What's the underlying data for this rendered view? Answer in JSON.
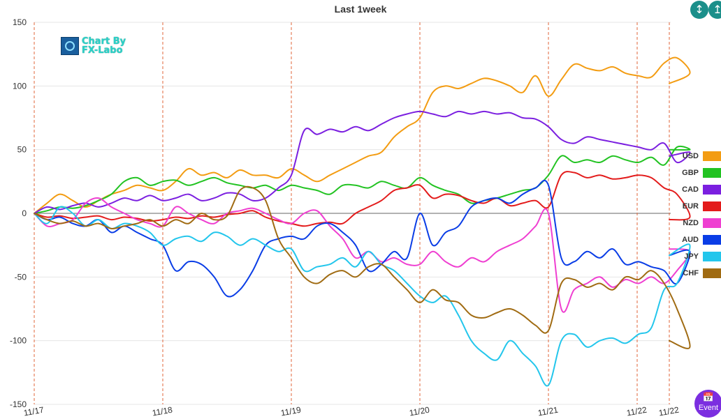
{
  "title": "Last 1week",
  "logo": {
    "line1": "Chart By",
    "line2": "FX-Labo"
  },
  "buttons": {
    "top1_icon": "collapse-vertical-icon",
    "top2_icon": "expand-vertical-icon",
    "event_label": "Event",
    "event_icon": "calendar-icon"
  },
  "chart_data": {
    "type": "line",
    "title": "Last 1week",
    "ylim": [
      -150,
      150
    ],
    "yticks": [
      150,
      100,
      50,
      0,
      -50,
      -100,
      -150
    ],
    "xlim": [
      0,
      5.5
    ],
    "xticks": [
      {
        "x": 0.0,
        "label": "11/17"
      },
      {
        "x": 1.0,
        "label": "11/18"
      },
      {
        "x": 2.0,
        "label": "11/19"
      },
      {
        "x": 3.0,
        "label": "11/20"
      },
      {
        "x": 4.0,
        "label": "11/21"
      },
      {
        "x": 5.0,
        "label": "11/22"
      },
      {
        "x": 5.25,
        "label": "11/22"
      }
    ],
    "grid": true,
    "legend_position": "right",
    "series": [
      {
        "name": "USD",
        "color": "#f39c12",
        "x": [
          0,
          0.1,
          0.2,
          0.3,
          0.4,
          0.5,
          0.6,
          0.7,
          0.8,
          0.9,
          1.0,
          1.1,
          1.2,
          1.3,
          1.4,
          1.5,
          1.6,
          1.7,
          1.8,
          1.9,
          2.0,
          2.1,
          2.2,
          2.3,
          2.4,
          2.5,
          2.6,
          2.7,
          2.8,
          2.9,
          3.0,
          3.1,
          3.2,
          3.3,
          3.4,
          3.5,
          3.6,
          3.7,
          3.8,
          3.9,
          4.0,
          4.1,
          4.2,
          4.3,
          4.4,
          4.5,
          4.6,
          4.7,
          4.8,
          4.9,
          5.0,
          5.1,
          5.25
        ],
        "y": [
          0,
          8,
          15,
          10,
          5,
          10,
          15,
          18,
          22,
          20,
          18,
          25,
          35,
          30,
          32,
          28,
          34,
          30,
          30,
          28,
          35,
          30,
          25,
          30,
          35,
          40,
          45,
          48,
          60,
          68,
          75,
          95,
          100,
          98,
          102,
          106,
          104,
          100,
          95,
          108,
          92,
          105,
          117,
          114,
          112,
          115,
          110,
          108,
          107,
          118,
          122,
          110,
          102
        ]
      },
      {
        "name": "GBP",
        "color": "#22c322",
        "x": [
          0,
          0.1,
          0.2,
          0.3,
          0.4,
          0.5,
          0.6,
          0.7,
          0.8,
          0.9,
          1.0,
          1.1,
          1.2,
          1.3,
          1.4,
          1.5,
          1.6,
          1.7,
          1.8,
          1.9,
          2.0,
          2.1,
          2.2,
          2.3,
          2.4,
          2.5,
          2.6,
          2.7,
          2.8,
          2.9,
          3.0,
          3.1,
          3.2,
          3.3,
          3.4,
          3.5,
          3.6,
          3.7,
          3.8,
          3.9,
          4.0,
          4.1,
          4.2,
          4.3,
          4.4,
          4.5,
          4.6,
          4.7,
          4.8,
          4.9,
          5.0,
          5.1,
          5.25
        ],
        "y": [
          0,
          2,
          5,
          4,
          6,
          10,
          15,
          25,
          28,
          22,
          25,
          26,
          22,
          25,
          28,
          24,
          22,
          20,
          22,
          18,
          22,
          20,
          18,
          15,
          22,
          22,
          20,
          25,
          22,
          20,
          28,
          22,
          18,
          15,
          8,
          10,
          12,
          15,
          18,
          20,
          30,
          45,
          40,
          42,
          40,
          45,
          42,
          40,
          44,
          38,
          52,
          50,
          50
        ]
      },
      {
        "name": "CAD",
        "color": "#7b1fe0",
        "x": [
          0,
          0.1,
          0.2,
          0.3,
          0.4,
          0.5,
          0.6,
          0.7,
          0.8,
          0.9,
          1.0,
          1.1,
          1.2,
          1.3,
          1.4,
          1.5,
          1.6,
          1.7,
          1.8,
          1.9,
          2.0,
          2.1,
          2.2,
          2.3,
          2.4,
          2.5,
          2.6,
          2.7,
          2.8,
          2.9,
          3.0,
          3.1,
          3.2,
          3.3,
          3.4,
          3.5,
          3.6,
          3.7,
          3.8,
          3.9,
          4.0,
          4.1,
          4.2,
          4.3,
          4.4,
          4.5,
          4.6,
          4.7,
          4.8,
          4.9,
          5.0,
          5.1,
          5.25
        ],
        "y": [
          0,
          5,
          3,
          6,
          8,
          5,
          8,
          12,
          10,
          14,
          10,
          12,
          15,
          10,
          12,
          16,
          15,
          10,
          12,
          20,
          30,
          65,
          62,
          66,
          64,
          68,
          65,
          70,
          75,
          78,
          80,
          78,
          76,
          80,
          78,
          80,
          78,
          79,
          75,
          74,
          68,
          58,
          55,
          60,
          58,
          56,
          54,
          52,
          50,
          55,
          40,
          48,
          45
        ]
      },
      {
        "name": "EUR",
        "color": "#e31b1b",
        "x": [
          0,
          0.1,
          0.2,
          0.3,
          0.4,
          0.5,
          0.6,
          0.7,
          0.8,
          0.9,
          1.0,
          1.1,
          1.2,
          1.3,
          1.4,
          1.5,
          1.6,
          1.7,
          1.8,
          1.9,
          2.0,
          2.1,
          2.2,
          2.3,
          2.4,
          2.5,
          2.6,
          2.7,
          2.8,
          2.9,
          3.0,
          3.1,
          3.2,
          3.3,
          3.4,
          3.5,
          3.6,
          3.7,
          3.8,
          3.9,
          4.0,
          4.1,
          4.2,
          4.3,
          4.4,
          4.5,
          4.6,
          4.7,
          4.8,
          4.9,
          5.0,
          5.1,
          5.25
        ],
        "y": [
          0,
          -3,
          -2,
          -4,
          -3,
          -2,
          -5,
          -3,
          -4,
          -6,
          -5,
          -3,
          -4,
          -2,
          -3,
          -1,
          0,
          2,
          -3,
          -6,
          -8,
          -10,
          -8,
          -7,
          -8,
          0,
          5,
          10,
          18,
          20,
          22,
          12,
          15,
          14,
          10,
          8,
          12,
          6,
          8,
          10,
          5,
          30,
          32,
          28,
          30,
          27,
          28,
          30,
          28,
          20,
          15,
          -3,
          -5
        ]
      },
      {
        "name": "NZD",
        "color": "#ef3fd1",
        "x": [
          0,
          0.1,
          0.2,
          0.3,
          0.4,
          0.5,
          0.6,
          0.7,
          0.8,
          0.9,
          1.0,
          1.1,
          1.2,
          1.3,
          1.4,
          1.5,
          1.6,
          1.7,
          1.8,
          1.9,
          2.0,
          2.1,
          2.2,
          2.3,
          2.4,
          2.5,
          2.6,
          2.7,
          2.8,
          2.9,
          3.0,
          3.1,
          3.2,
          3.3,
          3.4,
          3.5,
          3.6,
          3.7,
          3.8,
          3.9,
          4.0,
          4.1,
          4.2,
          4.3,
          4.4,
          4.5,
          4.6,
          4.7,
          4.8,
          4.9,
          5.0,
          5.1,
          5.25
        ],
        "y": [
          0,
          -10,
          -8,
          -5,
          8,
          12,
          5,
          0,
          -5,
          -8,
          -10,
          5,
          0,
          -5,
          -8,
          0,
          2,
          4,
          0,
          -5,
          -8,
          0,
          2,
          -10,
          -20,
          -35,
          -30,
          -38,
          -35,
          -40,
          -40,
          -30,
          -38,
          -42,
          -35,
          -38,
          -30,
          -25,
          -20,
          -10,
          0,
          -75,
          -60,
          -55,
          -50,
          -58,
          -52,
          -55,
          -50,
          -55,
          -45,
          -30,
          -28
        ]
      },
      {
        "name": "AUD",
        "color": "#0a3de6",
        "x": [
          0,
          0.1,
          0.2,
          0.3,
          0.4,
          0.5,
          0.6,
          0.7,
          0.8,
          0.9,
          1.0,
          1.1,
          1.2,
          1.3,
          1.4,
          1.5,
          1.6,
          1.7,
          1.8,
          1.9,
          2.0,
          2.1,
          2.2,
          2.3,
          2.4,
          2.5,
          2.6,
          2.7,
          2.8,
          2.9,
          3.0,
          3.1,
          3.2,
          3.3,
          3.4,
          3.5,
          3.6,
          3.7,
          3.8,
          3.9,
          4.0,
          4.1,
          4.2,
          4.3,
          4.4,
          4.5,
          4.6,
          4.7,
          4.8,
          4.9,
          5.0,
          5.1,
          5.25
        ],
        "y": [
          0,
          -5,
          -3,
          -8,
          -10,
          -5,
          -15,
          -10,
          -15,
          -20,
          -25,
          -45,
          -38,
          -40,
          -50,
          -65,
          -60,
          -45,
          -25,
          -20,
          -18,
          -20,
          -10,
          -8,
          -15,
          -25,
          -45,
          -40,
          -30,
          -35,
          0,
          -25,
          -15,
          -10,
          5,
          10,
          12,
          8,
          15,
          20,
          22,
          -35,
          -38,
          -30,
          -35,
          -28,
          -40,
          -38,
          -42,
          -45,
          -55,
          -30,
          -33
        ]
      },
      {
        "name": "JPY",
        "color": "#23c6ec",
        "x": [
          0,
          0.1,
          0.2,
          0.3,
          0.4,
          0.5,
          0.6,
          0.7,
          0.8,
          0.9,
          1.0,
          1.1,
          1.2,
          1.3,
          1.4,
          1.5,
          1.6,
          1.7,
          1.8,
          1.9,
          2.0,
          2.1,
          2.2,
          2.3,
          2.4,
          2.5,
          2.6,
          2.7,
          2.8,
          2.9,
          3.0,
          3.1,
          3.2,
          3.3,
          3.4,
          3.5,
          3.6,
          3.7,
          3.8,
          3.9,
          4.0,
          4.1,
          4.2,
          4.3,
          4.4,
          4.5,
          4.6,
          4.7,
          4.8,
          4.9,
          5.0,
          5.1,
          5.25
        ],
        "y": [
          0,
          -8,
          5,
          0,
          -10,
          -5,
          -12,
          -8,
          -10,
          -15,
          -25,
          -20,
          -18,
          -22,
          -15,
          -18,
          -25,
          -20,
          -25,
          -30,
          -28,
          -45,
          -42,
          -40,
          -35,
          -42,
          -30,
          -40,
          -45,
          -55,
          -65,
          -70,
          -65,
          -80,
          -100,
          -110,
          -115,
          -100,
          -110,
          -120,
          -135,
          -100,
          -95,
          -105,
          -100,
          -98,
          -102,
          -95,
          -90,
          -60,
          -55,
          -25,
          -33
        ]
      },
      {
        "name": "CHF",
        "color": "#a06b12",
        "x": [
          0,
          0.1,
          0.2,
          0.3,
          0.4,
          0.5,
          0.6,
          0.7,
          0.8,
          0.9,
          1.0,
          1.1,
          1.2,
          1.3,
          1.4,
          1.5,
          1.6,
          1.7,
          1.8,
          1.9,
          2.0,
          2.1,
          2.2,
          2.3,
          2.4,
          2.5,
          2.6,
          2.7,
          2.8,
          2.9,
          3.0,
          3.1,
          3.2,
          3.3,
          3.4,
          3.5,
          3.6,
          3.7,
          3.8,
          3.9,
          4.0,
          4.1,
          4.2,
          4.3,
          4.4,
          4.5,
          4.6,
          4.7,
          4.8,
          4.9,
          5.0,
          5.1,
          5.25
        ],
        "y": [
          0,
          -5,
          -8,
          -6,
          -10,
          -8,
          -12,
          -10,
          -8,
          -5,
          -10,
          -5,
          -8,
          0,
          -5,
          -2,
          18,
          20,
          10,
          -20,
          -35,
          -50,
          -55,
          -48,
          -45,
          -50,
          -42,
          -40,
          -50,
          -60,
          -70,
          -60,
          -68,
          -70,
          -80,
          -82,
          -78,
          -75,
          -80,
          -88,
          -92,
          -55,
          -52,
          -58,
          -55,
          -60,
          -50,
          -52,
          -45,
          -55,
          -75,
          -105,
          -100
        ]
      }
    ]
  }
}
